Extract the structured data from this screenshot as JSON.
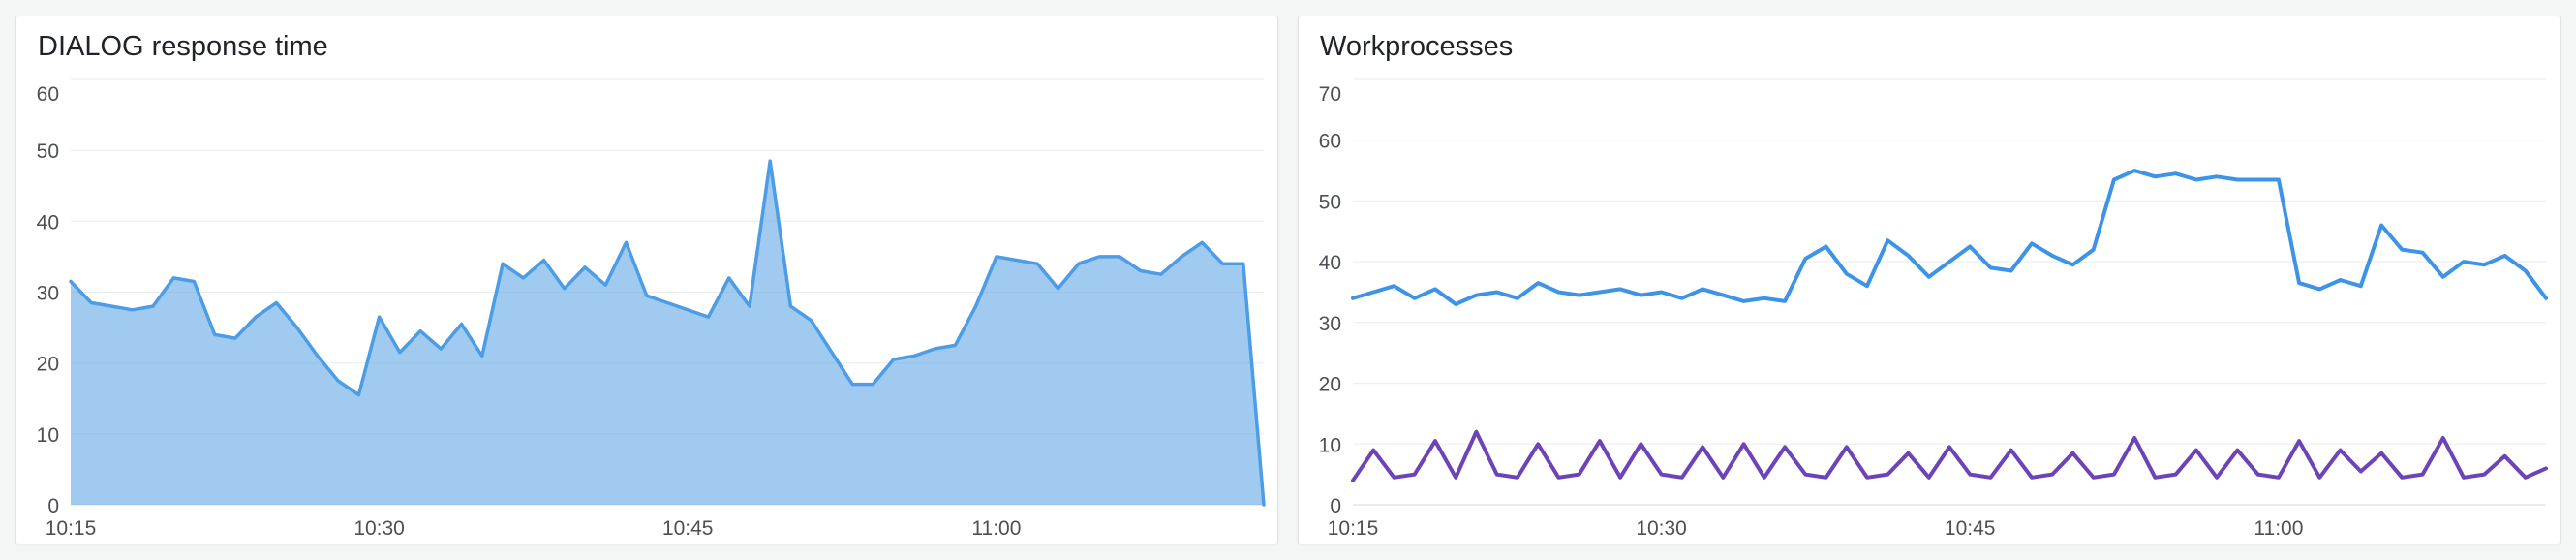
{
  "dashboard": {
    "background_color": "#f4f5f5",
    "panel_background": "#ffffff"
  },
  "panels": [
    {
      "title": "DIALOG response time"
    },
    {
      "title": "Workprocesses"
    }
  ],
  "chart_data": [
    {
      "type": "area",
      "title": "DIALOG response time",
      "xlabel": "",
      "ylabel": "",
      "ylim": [
        0,
        60
      ],
      "y_ticks": [
        0,
        10,
        20,
        30,
        40,
        50,
        60
      ],
      "grid": true,
      "legend": "none",
      "x_axis": {
        "start": "10:15",
        "interval_minutes": 1,
        "count": 59
      },
      "x_ticks": [
        {
          "label": "10:15",
          "i": 0
        },
        {
          "label": "10:30",
          "i": 15
        },
        {
          "label": "10:45",
          "i": 30
        },
        {
          "label": "11:00",
          "i": 45
        }
      ],
      "series": [
        {
          "name": "blue-area",
          "color": "#4d9de6",
          "fill": "rgba(109,174,231,0.65)",
          "width": 3.5,
          "values": [
            31.5,
            28.5,
            28,
            27.5,
            28,
            32,
            31.5,
            24,
            23.5,
            26.5,
            28.5,
            25,
            21,
            17.5,
            15.5,
            26.5,
            21.5,
            24.5,
            22,
            25.5,
            21,
            34,
            32,
            34.5,
            30.5,
            33.5,
            31,
            37,
            29.5,
            28.5,
            27.5,
            26.5,
            32,
            28,
            48.5,
            28,
            26,
            21.5,
            17,
            17,
            20.5,
            21,
            22,
            22.5,
            28,
            35,
            34.5,
            34,
            30.5,
            34,
            35,
            35,
            33,
            32.5,
            35,
            37,
            34,
            34,
            0
          ]
        }
      ]
    },
    {
      "type": "line",
      "title": "Workprocesses",
      "xlabel": "",
      "ylabel": "",
      "ylim": [
        0,
        70
      ],
      "y_ticks": [
        0,
        10,
        20,
        30,
        40,
        50,
        60,
        70
      ],
      "grid": true,
      "legend": "none",
      "x_axis": {
        "start": "10:15",
        "interval_minutes": 1,
        "count": 59
      },
      "x_ticks": [
        {
          "label": "10:15",
          "i": 0
        },
        {
          "label": "10:30",
          "i": 15
        },
        {
          "label": "10:45",
          "i": 30
        },
        {
          "label": "11:00",
          "i": 45
        }
      ],
      "series": [
        {
          "name": "blue-line",
          "color": "#3d94e6",
          "width": 4,
          "values": [
            34,
            35,
            36,
            34,
            35.5,
            33,
            34.5,
            35,
            34,
            36.5,
            35,
            34.5,
            35,
            35.5,
            34.5,
            35,
            34,
            35.5,
            34.5,
            33.5,
            34,
            33.5,
            40.5,
            42.5,
            38,
            36,
            43.5,
            41,
            37.5,
            40,
            42.5,
            39,
            38.5,
            43,
            41,
            39.5,
            42,
            53.5,
            55,
            54,
            54.5,
            53.5,
            54,
            53.5,
            53.5,
            53.5,
            36.5,
            35.5,
            37,
            36,
            46,
            42,
            41.5,
            37.5,
            40,
            39.5,
            41,
            38.5,
            34
          ]
        },
        {
          "name": "purple-line",
          "color": "#6d43b8",
          "width": 4,
          "values": [
            4,
            9,
            4.5,
            5,
            10.5,
            4.5,
            12,
            5,
            4.5,
            10,
            4.5,
            5,
            10.5,
            4.5,
            10,
            5,
            4.5,
            9.5,
            4.5,
            10,
            4.5,
            9.5,
            5,
            4.5,
            9.5,
            4.5,
            5,
            8.5,
            4.5,
            9.5,
            5,
            4.5,
            9,
            4.5,
            5,
            8.5,
            4.5,
            5,
            11,
            4.5,
            5,
            9,
            4.5,
            9,
            5,
            4.5,
            10.5,
            4.5,
            9,
            5.5,
            8.5,
            4.5,
            5,
            11,
            4.5,
            5,
            8,
            4.5,
            6
          ]
        }
      ]
    }
  ]
}
